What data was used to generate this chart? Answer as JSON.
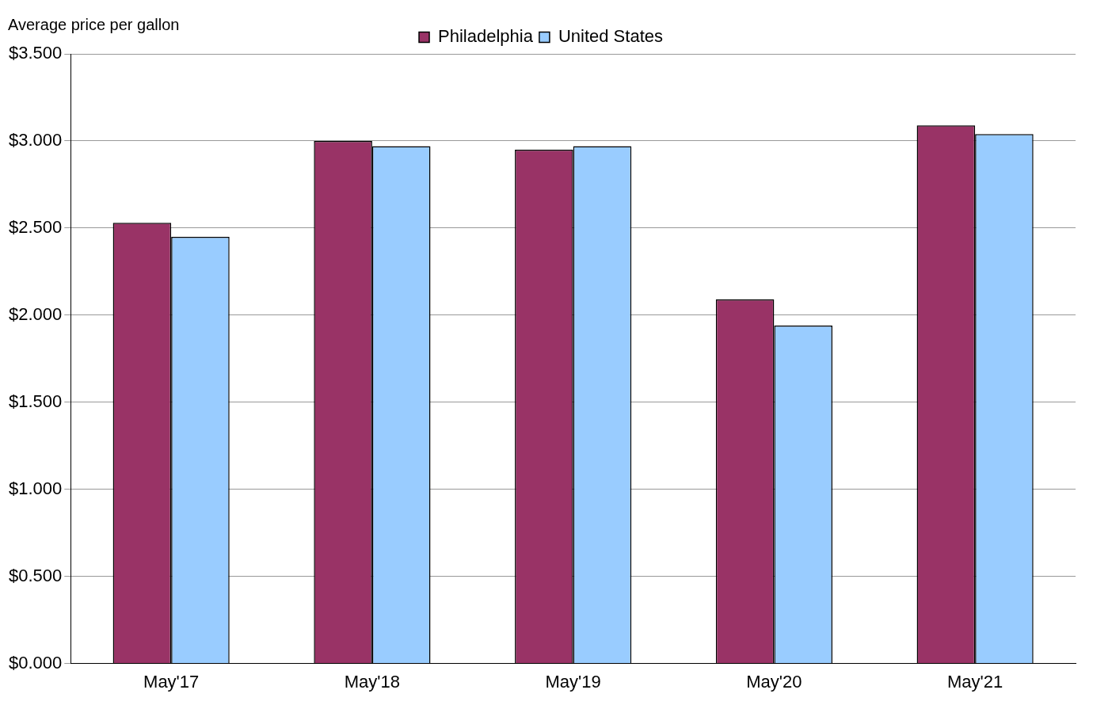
{
  "chart_data": {
    "type": "bar",
    "ylabel": "Average price per gallon",
    "categories": [
      "May'17",
      "May'18",
      "May'19",
      "May'20",
      "May'21"
    ],
    "series": [
      {
        "name": "Philadelphia",
        "color": "#993366",
        "values": [
          2.53,
          3.0,
          2.95,
          2.09,
          3.09
        ]
      },
      {
        "name": "United States",
        "color": "#99ccff",
        "values": [
          2.45,
          2.97,
          2.97,
          1.94,
          3.04
        ]
      }
    ],
    "ylim": [
      0,
      3.5
    ],
    "yticks": [
      {
        "value": 0,
        "label": "$0.000"
      },
      {
        "value": 0.5,
        "label": "$0.500"
      },
      {
        "value": 1,
        "label": "$1.000"
      },
      {
        "value": 1.5,
        "label": "$1.500"
      },
      {
        "value": 2,
        "label": "$2.000"
      },
      {
        "value": 2.5,
        "label": "$2.500"
      },
      {
        "value": 3,
        "label": "$3.000"
      },
      {
        "value": 3.5,
        "label": "$3.500"
      }
    ],
    "grid": "y",
    "legend": "top"
  }
}
